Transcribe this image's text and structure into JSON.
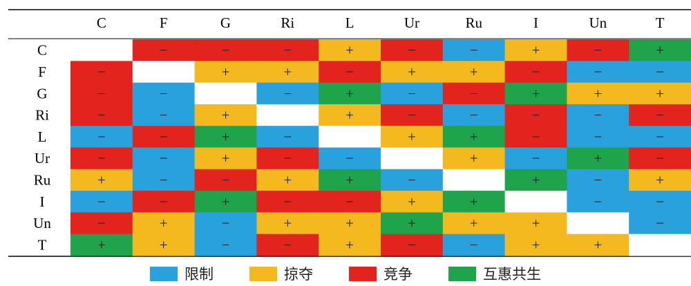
{
  "chart_data": {
    "type": "heatmap",
    "title": "",
    "columns": [
      "C",
      "F",
      "G",
      "Ri",
      "L",
      "Ur",
      "Ru",
      "I",
      "Un",
      "T"
    ],
    "rows": [
      "C",
      "F",
      "G",
      "Ri",
      "L",
      "Ur",
      "Ru",
      "I",
      "Un",
      "T"
    ],
    "cells": [
      [
        "",
        "竞争",
        "竞争",
        "竞争",
        "掠夺",
        "竞争",
        "限制",
        "掠夺",
        "竞争",
        "互惠共生"
      ],
      [
        "竞争",
        "",
        "掠夺",
        "掠夺",
        "竞争",
        "掠夺",
        "掠夺",
        "竞争",
        "限制",
        "限制"
      ],
      [
        "竞争",
        "限制",
        "",
        "限制",
        "互惠共生",
        "限制",
        "竞争",
        "互惠共生",
        "掠夺",
        "掠夺"
      ],
      [
        "竞争",
        "限制",
        "掠夺",
        "",
        "掠夺",
        "竞争",
        "限制",
        "竞争",
        "限制",
        "竞争"
      ],
      [
        "限制",
        "竞争",
        "互惠共生",
        "限制",
        "",
        "掠夺",
        "互惠共生",
        "竞争",
        "限制",
        "限制"
      ],
      [
        "竞争",
        "限制",
        "掠夺",
        "竞争",
        "限制",
        "",
        "掠夺",
        "限制",
        "互惠共生",
        "竞争"
      ],
      [
        "掠夺",
        "限制",
        "竞争",
        "掠夺",
        "互惠共生",
        "限制",
        "",
        "互惠共生",
        "限制",
        "掠夺"
      ],
      [
        "限制",
        "竞争",
        "互惠共生",
        "竞争",
        "竞争",
        "掠夺",
        "互惠共生",
        "",
        "限制",
        "限制"
      ],
      [
        "竞争",
        "掠夺",
        "限制",
        "掠夺",
        "掠夺",
        "互惠共生",
        "掠夺",
        "掠夺",
        "",
        "限制"
      ],
      [
        "互惠共生",
        "掠夺",
        "限制",
        "竞争",
        "掠夺",
        "竞争",
        "限制",
        "掠夺",
        "掠夺",
        ""
      ]
    ],
    "symbols": [
      [
        "",
        "−",
        "−",
        "−",
        "+",
        "−",
        "−",
        "+",
        "−",
        "+"
      ],
      [
        "−",
        "",
        "+",
        "+",
        "−",
        "+",
        "+",
        "−",
        "−",
        "−"
      ],
      [
        "−",
        "−",
        "",
        "−",
        "+",
        "−",
        "−",
        "+",
        "+",
        "+"
      ],
      [
        "−",
        "−",
        "+",
        "",
        "+",
        "−",
        "−",
        "−",
        "−",
        "−"
      ],
      [
        "−",
        "−",
        "+",
        "−",
        "",
        "+",
        "+",
        "−",
        "−",
        "−"
      ],
      [
        "−",
        "−",
        "+",
        "−",
        "−",
        "",
        "+",
        "−",
        "+",
        "−"
      ],
      [
        "+",
        "−",
        "−",
        "+",
        "+",
        "−",
        "",
        "+",
        "−",
        "+"
      ],
      [
        "−",
        "−",
        "+",
        "−",
        "−",
        "+",
        "+",
        "",
        "−",
        "−"
      ],
      [
        "−",
        "+",
        "−",
        "+",
        "+",
        "+",
        "+",
        "+",
        "",
        "−"
      ],
      [
        "+",
        "+",
        "−",
        "−",
        "+",
        "−",
        "−",
        "+",
        "+",
        ""
      ]
    ],
    "legend": [
      {
        "label": "限制",
        "color": "#29a1dc"
      },
      {
        "label": "掠夺",
        "color": "#f3b91f"
      },
      {
        "label": "竞争",
        "color": "#e3231e"
      },
      {
        "label": "互惠共生",
        "color": "#1fa44c"
      }
    ]
  }
}
